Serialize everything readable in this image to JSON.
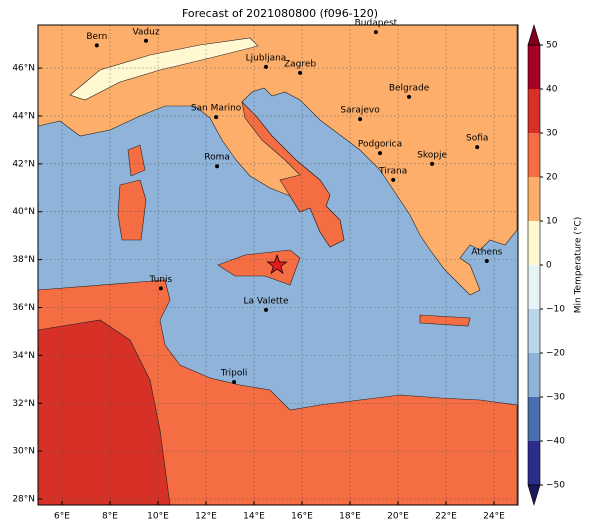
{
  "chart_data": {
    "type": "map",
    "title": "Forecast of 2021080800 (f096-120)",
    "xlim": [
      5,
      25
    ],
    "ylim": [
      27.75,
      47.8
    ],
    "xticks": [
      {
        "value": 6,
        "label": "6°E"
      },
      {
        "value": 8,
        "label": "8°E"
      },
      {
        "value": 10,
        "label": "10°E"
      },
      {
        "value": 12,
        "label": "12°E"
      },
      {
        "value": 14,
        "label": "14°E"
      },
      {
        "value": 16,
        "label": "16°E"
      },
      {
        "value": 18,
        "label": "18°E"
      },
      {
        "value": 20,
        "label": "20°E"
      },
      {
        "value": 22,
        "label": "22°E"
      },
      {
        "value": 24,
        "label": "24°E"
      }
    ],
    "yticks": [
      {
        "value": 28,
        "label": "28°N"
      },
      {
        "value": 30,
        "label": "30°N"
      },
      {
        "value": 32,
        "label": "32°N"
      },
      {
        "value": 34,
        "label": "34°N"
      },
      {
        "value": 36,
        "label": "36°N"
      },
      {
        "value": 38,
        "label": "38°N"
      },
      {
        "value": 40,
        "label": "40°N"
      },
      {
        "value": 42,
        "label": "42°N"
      },
      {
        "value": 44,
        "label": "44°N"
      },
      {
        "value": 46,
        "label": "46°N"
      }
    ],
    "grid": true,
    "cities": [
      {
        "name": "Bern",
        "lon": 7.45,
        "lat": 46.95
      },
      {
        "name": "Vaduz",
        "lon": 9.5,
        "lat": 47.14
      },
      {
        "name": "Budapest",
        "lon": 19.08,
        "lat": 47.5
      },
      {
        "name": "Ljubljana",
        "lon": 14.5,
        "lat": 46.05
      },
      {
        "name": "Zagreb",
        "lon": 15.92,
        "lat": 45.8
      },
      {
        "name": "Belgrade",
        "lon": 20.46,
        "lat": 44.8
      },
      {
        "name": "San Marino",
        "lon": 12.42,
        "lat": 43.95
      },
      {
        "name": "Sarajevo",
        "lon": 18.42,
        "lat": 43.87
      },
      {
        "name": "Sofia",
        "lon": 23.3,
        "lat": 42.7
      },
      {
        "name": "Podgorica",
        "lon": 19.25,
        "lat": 42.45
      },
      {
        "name": "Skopje",
        "lon": 21.42,
        "lat": 42.0
      },
      {
        "name": "Roma",
        "lon": 12.46,
        "lat": 41.9
      },
      {
        "name": "Tirana",
        "lon": 19.8,
        "lat": 41.33
      },
      {
        "name": "Athens",
        "lon": 23.7,
        "lat": 37.94
      },
      {
        "name": "Tunis",
        "lon": 10.12,
        "lat": 36.8
      },
      {
        "name": "La Valette",
        "lon": 14.5,
        "lat": 35.9
      },
      {
        "name": "Tripoli",
        "lon": 13.17,
        "lat": 32.89
      }
    ],
    "star": {
      "lon": 14.96,
      "lat": 37.77,
      "color": "#e41a1c"
    },
    "colorbar": {
      "label": "Min Temperature (°C)",
      "lim": [
        -50,
        50
      ],
      "ticks": [
        {
          "value": -50,
          "label": "−50"
        },
        {
          "value": -40,
          "label": "−40"
        },
        {
          "value": -30,
          "label": "−30"
        },
        {
          "value": -20,
          "label": "−20"
        },
        {
          "value": -10,
          "label": "−10"
        },
        0,
        10,
        20,
        30,
        40,
        50
      ],
      "colors": [
        "#2c2c8c",
        "#4a6fae",
        "#8fb3d9",
        "#b9d7e8",
        "#e6f4f7",
        "#fff8d0",
        "#fdae6b",
        "#f46d43",
        "#d73027",
        "#a50026"
      ],
      "under": "#1a1a5a",
      "over": "#800020"
    }
  }
}
